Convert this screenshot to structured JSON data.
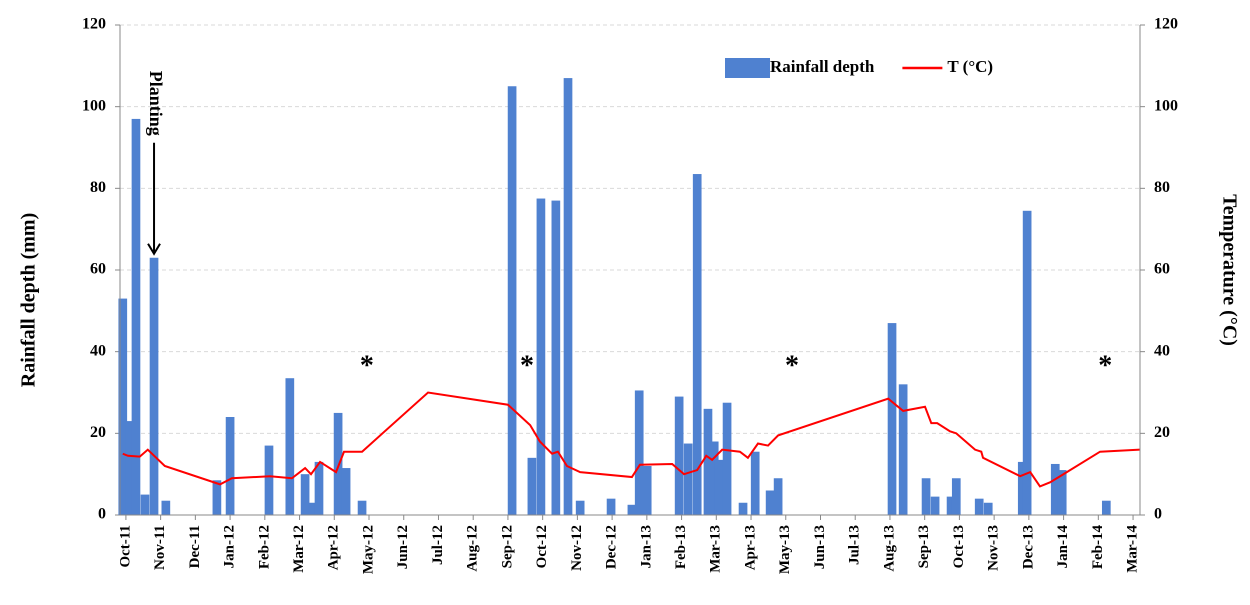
{
  "chart_data": {
    "type": "combo",
    "ylabel": "Rainfall depth (mm)",
    "y2label": "Temperature (°C)",
    "xlim": [
      -0.17,
      29.2
    ],
    "ylim": [
      0,
      120
    ],
    "y2lim": [
      0,
      120
    ],
    "yticks": [
      0,
      20,
      40,
      60,
      80,
      100,
      120
    ],
    "y2ticks": [
      0,
      20,
      40,
      60,
      80,
      100,
      120
    ],
    "xticks": [
      {
        "value": 0,
        "label": "Oct-11"
      },
      {
        "value": 1,
        "label": "Nov-11"
      },
      {
        "value": 2,
        "label": "Dec-11"
      },
      {
        "value": 3,
        "label": "Jan-12"
      },
      {
        "value": 4,
        "label": "Feb-12"
      },
      {
        "value": 5,
        "label": "Mar-12"
      },
      {
        "value": 6,
        "label": "Apr-12"
      },
      {
        "value": 7,
        "label": "May-12"
      },
      {
        "value": 8,
        "label": "Jun-12"
      },
      {
        "value": 9,
        "label": "Jul-12"
      },
      {
        "value": 10,
        "label": "Aug-12"
      },
      {
        "value": 11,
        "label": "Sep-12"
      },
      {
        "value": 12,
        "label": "Oct-12"
      },
      {
        "value": 13,
        "label": "Nov-12"
      },
      {
        "value": 14,
        "label": "Dec-12"
      },
      {
        "value": 15,
        "label": "Jan-13"
      },
      {
        "value": 16,
        "label": "Feb-13"
      },
      {
        "value": 17,
        "label": "Mar-13"
      },
      {
        "value": 18,
        "label": "Apr-13"
      },
      {
        "value": 19,
        "label": "May-13"
      },
      {
        "value": 20,
        "label": "Jun-13"
      },
      {
        "value": 21,
        "label": "Jul-13"
      },
      {
        "value": 22,
        "label": "Aug-13"
      },
      {
        "value": 23,
        "label": "Sep-13"
      },
      {
        "value": 24,
        "label": "Oct-13"
      },
      {
        "value": 25,
        "label": "Nov-13"
      },
      {
        "value": 26,
        "label": "Dec-13"
      },
      {
        "value": 27,
        "label": "Jan-14"
      },
      {
        "value": 28,
        "label": "Feb-14"
      },
      {
        "value": 29,
        "label": "Mar-14"
      }
    ],
    "grid": true,
    "legend": "top-right",
    "series": [
      {
        "name": "Rainfall depth",
        "type": "bar",
        "color": "#4f81d0",
        "x": [
          -0.09,
          0.12,
          0.29,
          0.55,
          0.81,
          1.15,
          2.62,
          3.0,
          4.12,
          4.72,
          5.16,
          5.39,
          5.56,
          6.11,
          6.34,
          6.8,
          11.12,
          11.69,
          11.95,
          12.38,
          12.73,
          13.08,
          13.97,
          14.57,
          14.78,
          15.01,
          15.93,
          16.19,
          16.45,
          16.76,
          16.94,
          17.08,
          17.31,
          17.77,
          18.12,
          18.55,
          18.78,
          22.06,
          22.38,
          23.04,
          23.3,
          23.76,
          23.91,
          24.57,
          24.83,
          25.81,
          25.95,
          26.76,
          26.96,
          28.23
        ],
        "values": [
          53,
          23,
          97,
          5,
          63,
          3.5,
          8.5,
          24,
          17,
          33.5,
          10,
          3,
          13,
          25,
          11.5,
          3.5,
          105,
          14,
          77.5,
          77,
          107,
          3.5,
          4,
          2.5,
          30.5,
          12,
          29,
          17.5,
          83.5,
          26,
          18,
          13.5,
          27.5,
          3,
          15.5,
          6,
          9,
          47,
          32,
          9,
          4.5,
          4.5,
          9,
          4,
          3,
          13,
          74.5,
          12.5,
          11,
          3.5
        ]
      },
      {
        "name": "T (°C)",
        "type": "line",
        "axis": "y2",
        "color": "#ff0000",
        "x": [
          -0.09,
          0.06,
          0.4,
          0.63,
          1.12,
          2.71,
          3.05,
          4.15,
          4.78,
          5.16,
          5.33,
          5.59,
          6.05,
          6.28,
          6.8,
          8.7,
          11.0,
          11.64,
          11.92,
          12.27,
          12.44,
          12.7,
          13.08,
          14.57,
          14.8,
          15.73,
          16.07,
          16.45,
          16.71,
          16.88,
          17.17,
          17.68,
          17.91,
          18.2,
          18.49,
          18.78,
          21.95,
          22.38,
          23.01,
          23.19,
          23.36,
          23.73,
          23.91,
          24.45,
          24.63,
          24.68,
          25.75,
          26.04,
          26.32,
          26.61,
          26.9,
          28.05,
          29.2
        ],
        "values": [
          15,
          14.5,
          14.3,
          16,
          12,
          7.5,
          9,
          9.5,
          9,
          11.5,
          10,
          13,
          10.5,
          15.5,
          15.5,
          30,
          27,
          22,
          18,
          15,
          15.5,
          12,
          10.5,
          9.3,
          12.3,
          12.5,
          10,
          11,
          14.5,
          13.5,
          16,
          15.5,
          14,
          17.5,
          17,
          19.5,
          28.5,
          25.5,
          26.5,
          22.5,
          22.5,
          20.5,
          20,
          16,
          15.5,
          14,
          9.5,
          10.5,
          7,
          8,
          9.5,
          15.5,
          16
        ]
      }
    ],
    "annotations": [
      {
        "text": "Planting",
        "x": 0.81,
        "y": 63,
        "arrow": true
      },
      {
        "text": "*",
        "x": 6.94,
        "y": 36
      },
      {
        "text": "*",
        "x": 11.55,
        "y": 36
      },
      {
        "text": "*",
        "x": 19.18,
        "y": 36
      },
      {
        "text": "*",
        "x": 28.2,
        "y": 36
      }
    ]
  }
}
